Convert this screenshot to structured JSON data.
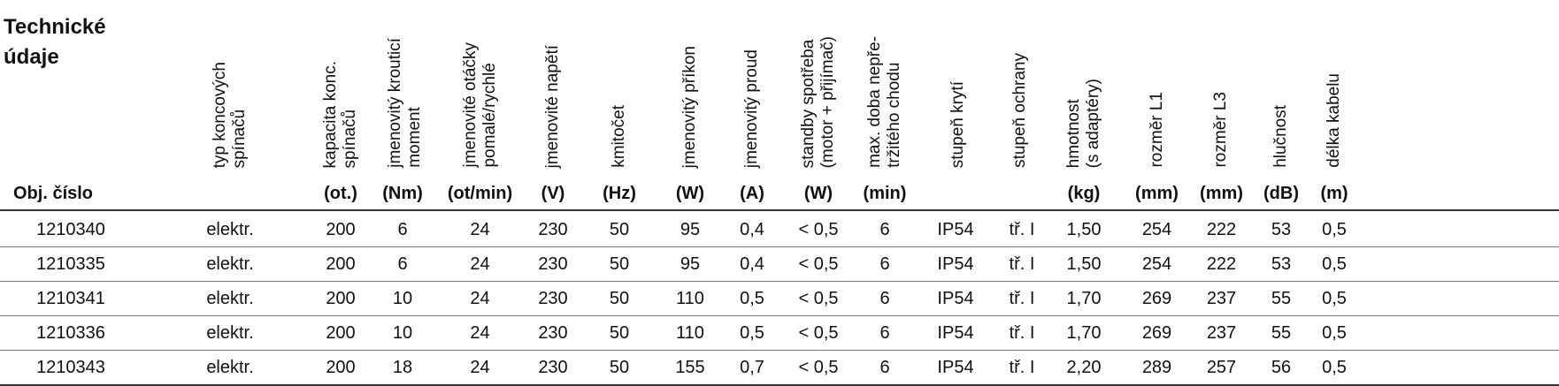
{
  "title_lines": [
    "Technické",
    "údaje"
  ],
  "header": {
    "obj_cislo": "Obj. číslo",
    "typ": "typ koncových\nspínačů",
    "kapacita": "kapacita konc.\nspínačů",
    "moment": "jmenovitý krouticí\nmoment",
    "otacky": "jmenovité otáčky\npomalé/rychlé",
    "napeti": "jmenovité napětí",
    "kmitocet": "kmitočet",
    "prikon": "jmenovitý příkon",
    "proud": "jmenovitý proud",
    "standby": "standby spotřeba\n(motor + přijímač)",
    "doba": "max. doba nepře-\ntržitého chodu",
    "kryti": "stupeň krytí",
    "ochrana": "stupeň ochrany",
    "hmotnost": "hmotnost\n(s adaptéry)",
    "l1": "rozměr L1",
    "l3": "rozměr L3",
    "hlucnost": "hlučnost",
    "kabel": "délka kabelu"
  },
  "units": {
    "kapacita": "(ot.)",
    "moment": "(Nm)",
    "otacky": "(ot/min)",
    "napeti": "(V)",
    "kmitocet": "(Hz)",
    "prikon": "(W)",
    "proud": "(A)",
    "standby": "(W)",
    "doba": "(min)",
    "hmotnost": "(kg)",
    "l1": "(mm)",
    "l3": "(mm)",
    "hlucnost": "(dB)",
    "kabel": "(m)"
  },
  "rows": [
    [
      "1210340",
      "elektr.",
      "200",
      "6",
      "24",
      "230",
      "50",
      "95",
      "0,4",
      "< 0,5",
      "6",
      "IP54",
      "tř. I",
      "1,50",
      "254",
      "222",
      "53",
      "0,5"
    ],
    [
      "1210335",
      "elektr.",
      "200",
      "6",
      "24",
      "230",
      "50",
      "95",
      "0,4",
      "< 0,5",
      "6",
      "IP54",
      "tř. I",
      "1,50",
      "254",
      "222",
      "53",
      "0,5"
    ],
    [
      "1210341",
      "elektr.",
      "200",
      "10",
      "24",
      "230",
      "50",
      "110",
      "0,5",
      "< 0,5",
      "6",
      "IP54",
      "tř. I",
      "1,70",
      "269",
      "237",
      "55",
      "0,5"
    ],
    [
      "1210336",
      "elektr.",
      "200",
      "10",
      "24",
      "230",
      "50",
      "110",
      "0,5",
      "< 0,5",
      "6",
      "IP54",
      "tř. I",
      "1,70",
      "269",
      "237",
      "55",
      "0,5"
    ],
    [
      "1210343",
      "elektr.",
      "200",
      "18",
      "24",
      "230",
      "50",
      "155",
      "0,7",
      "< 0,5",
      "6",
      "IP54",
      "tř. I",
      "2,20",
      "289",
      "257",
      "56",
      "0,5"
    ]
  ]
}
